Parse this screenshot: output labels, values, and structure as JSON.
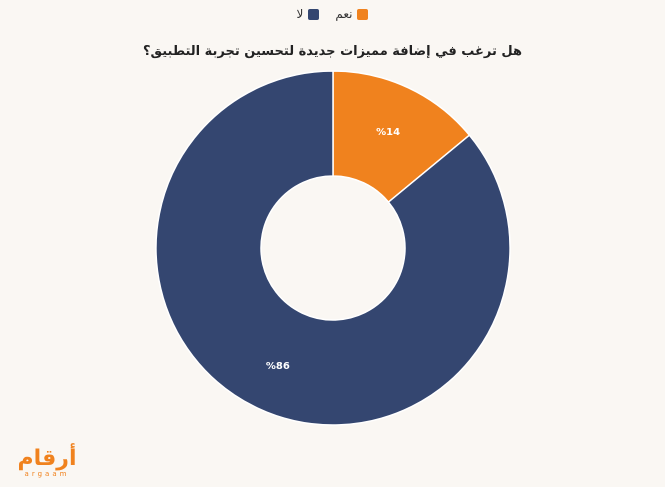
{
  "chart_data": {
    "type": "pie",
    "title": "هل ترغب في إضافة مميزات جديدة لتحسين تجربة التطبيق؟",
    "categories": [
      "نعم",
      "لا"
    ],
    "values": [
      14,
      86
    ],
    "labels": [
      "%14",
      "%86"
    ],
    "colors": [
      "#f0821e",
      "#344670"
    ],
    "legend_position": "top-center",
    "donut": true
  },
  "logo": {
    "arabic": "أرقام",
    "latin": "argaam"
  }
}
